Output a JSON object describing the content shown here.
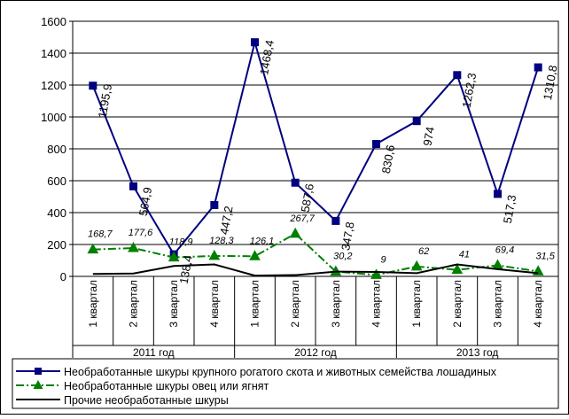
{
  "chart_data": {
    "type": "line",
    "categories": [
      "1 квартал",
      "2 квартал",
      "3 квартал",
      "4 квартал",
      "1 квартал",
      "2 квартал",
      "3 квартал",
      "4 квартал",
      "1 квартал",
      "2 квартал",
      "3 квартал",
      "4 квартал"
    ],
    "groups": [
      "2011 год",
      "2012 год",
      "2013 год"
    ],
    "yticks": [
      "0",
      "200",
      "400",
      "600",
      "800",
      "1000",
      "1200",
      "1400",
      "1600"
    ],
    "ylim": [
      0,
      1600
    ],
    "grid": "horizontal",
    "legend_position": "bottom",
    "series": [
      {
        "name": "Необработанные шкуры крупного рогатого скота и животных семейства лошадиных",
        "values": [
          1195.9,
          564.9,
          138.4,
          447.2,
          1468.4,
          587.6,
          347.8,
          830.6,
          974,
          1262.3,
          517.3,
          1310.8
        ],
        "labels": [
          "1195,9",
          "564,9",
          "138,4",
          "447,2",
          "1468,4",
          "587,6",
          "347,8",
          "830,6",
          "974",
          "1262,3",
          "517,3",
          "1310,8"
        ],
        "color": "#000080",
        "marker": "square",
        "dash": "solid"
      },
      {
        "name": "Необработанные шкуры овец или ягнят",
        "values": [
          168.7,
          177.6,
          118.9,
          128.3,
          126.1,
          267.7,
          30.2,
          9,
          62,
          41,
          69.4,
          31.5
        ],
        "labels": [
          "168,7",
          "177,6",
          "118,9",
          "128,3",
          "126,1",
          "267,7",
          "30,2",
          "9",
          "62",
          "41",
          "69,4",
          "31,5"
        ],
        "color": "#008000",
        "marker": "triangle",
        "dash": "dashdot"
      },
      {
        "name": "Прочие необработанные шкуры",
        "values": [
          15,
          18,
          65,
          75,
          5,
          8,
          30,
          28,
          20,
          75,
          45,
          20
        ],
        "color": "#000000",
        "marker": "none",
        "dash": "solid"
      }
    ]
  }
}
